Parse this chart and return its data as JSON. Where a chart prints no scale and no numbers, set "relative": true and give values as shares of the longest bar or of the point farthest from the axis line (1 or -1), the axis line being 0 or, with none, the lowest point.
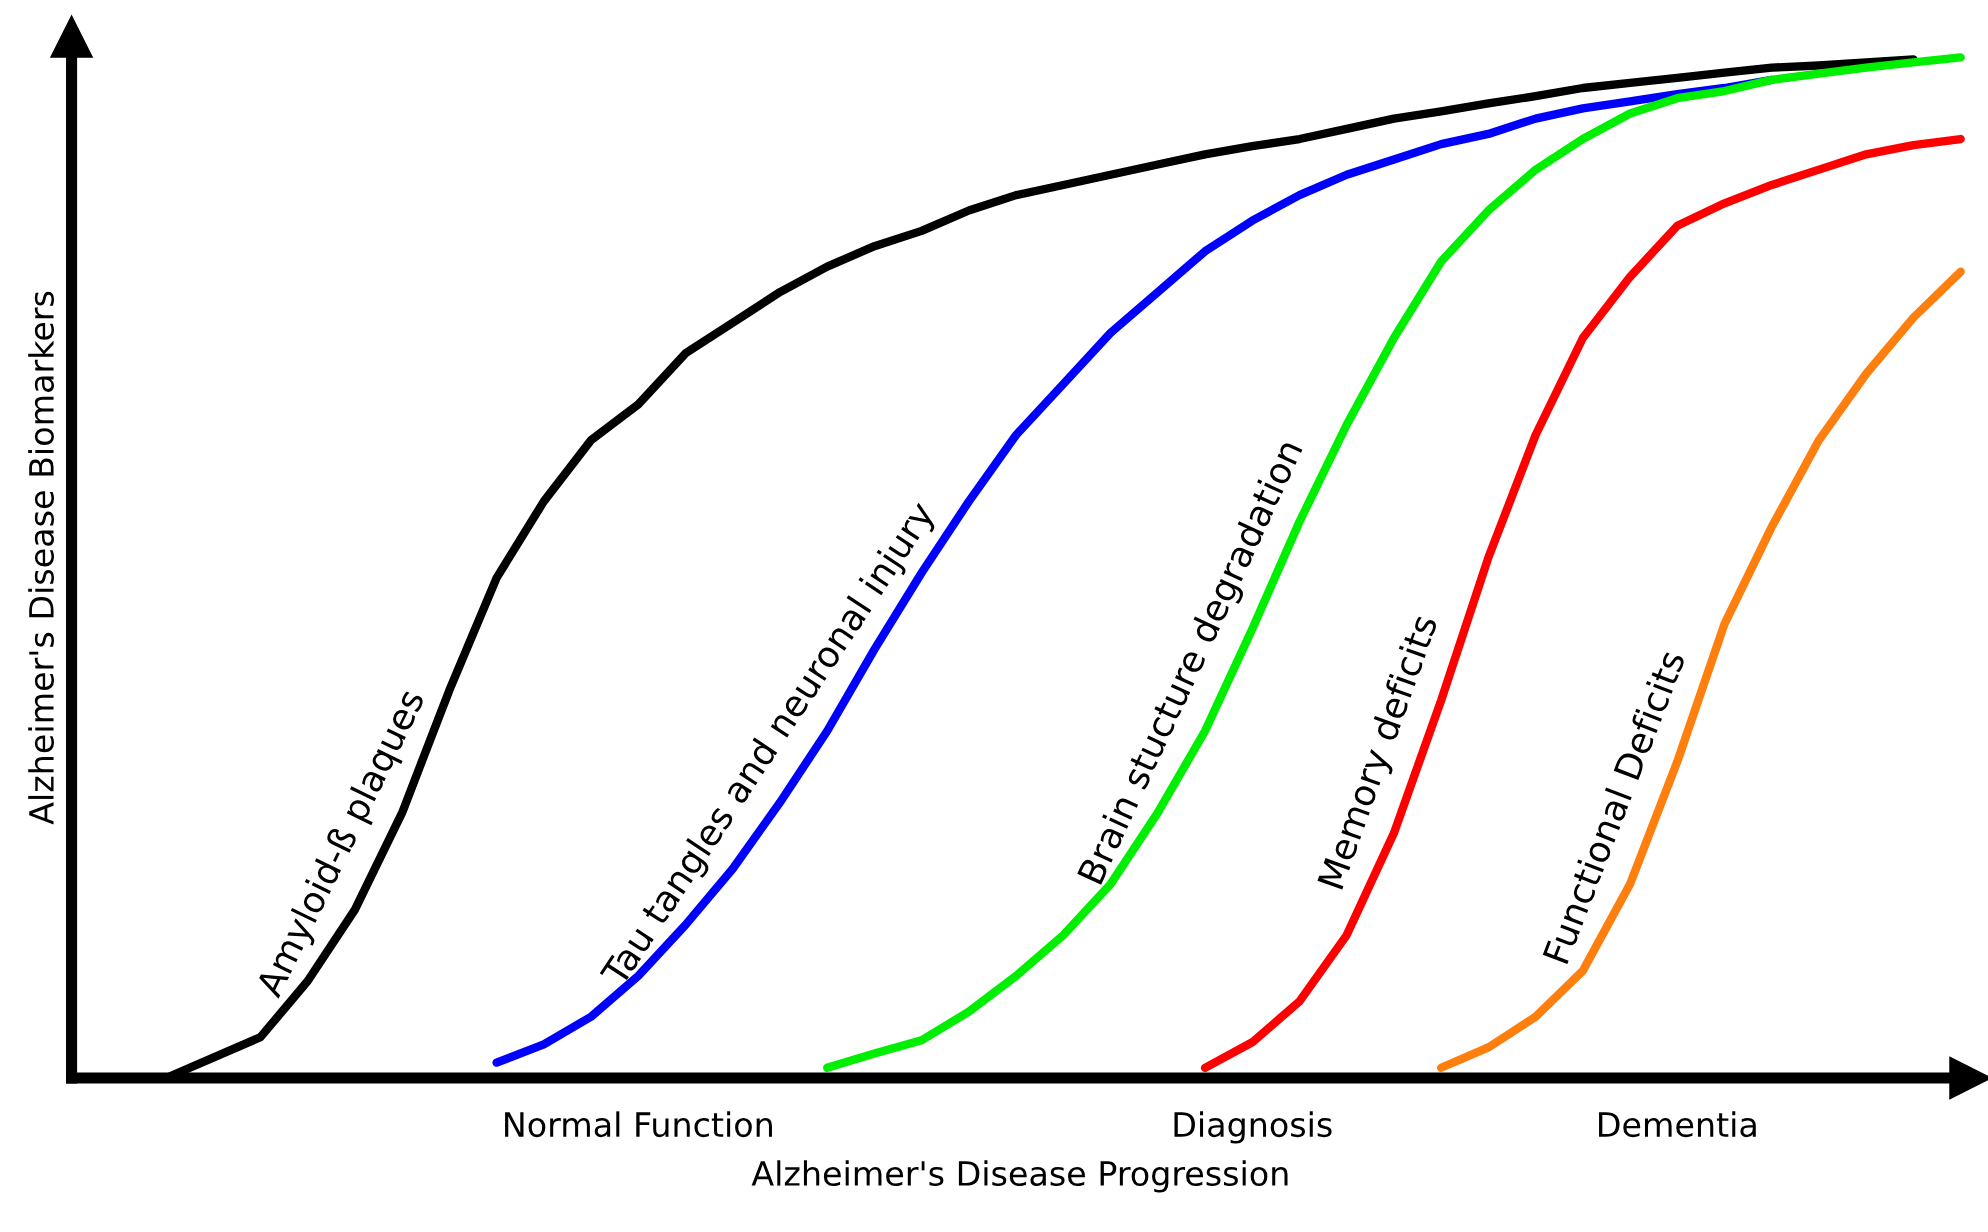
{
  "chart_data": {
    "type": "line",
    "relative": true,
    "xlabel": "Alzheimer's Disease Progression",
    "ylabel": "Alzheimer's Disease Biomarkers",
    "categories": [
      null,
      null,
      null,
      null,
      null,
      null,
      null,
      null,
      null,
      null,
      null,
      null,
      "Normal Function",
      null,
      null,
      null,
      null,
      null,
      null,
      null,
      null,
      null,
      null,
      null,
      null,
      "Diagnosis",
      null,
      null,
      null,
      null,
      null,
      null,
      null,
      null,
      "Dementia",
      null,
      null,
      null,
      null,
      null,
      null
    ],
    "tick_labels": "x",
    "grid": false,
    "legend": false,
    "marker": "none",
    "line_style": "solid",
    "series": [
      {
        "name": "Amyloid-ß plaques",
        "color": "#000000",
        "values": [
          null,
          null,
          0,
          0.02,
          0.04,
          0.095,
          0.165,
          0.26,
          0.38,
          0.49,
          0.565,
          0.625,
          0.66,
          0.71,
          0.74,
          0.77,
          0.795,
          0.815,
          0.83,
          0.85,
          0.865,
          0.875,
          0.885,
          0.895,
          0.905,
          0.913,
          0.92,
          0.93,
          0.94,
          0.947,
          0.955,
          0.962,
          0.97,
          0.975,
          0.98,
          0.985,
          0.99,
          0.992,
          0.995,
          0.998,
          null
        ]
      },
      {
        "name": "Tau tangles and neuronal injury",
        "color": "#0000ff",
        "values": [
          null,
          null,
          null,
          null,
          null,
          null,
          null,
          null,
          null,
          0.015,
          0.033,
          0.06,
          0.1,
          0.15,
          0.205,
          0.27,
          0.34,
          0.42,
          0.495,
          0.565,
          0.63,
          0.68,
          0.73,
          0.77,
          0.81,
          0.84,
          0.865,
          0.885,
          0.9,
          0.915,
          0.925,
          0.94,
          0.95,
          0.957,
          0.964,
          0.97,
          0.978,
          null,
          null,
          null,
          null
        ]
      },
      {
        "name": "Brain stucture degradation",
        "color": "#00ee00",
        "values": [
          null,
          null,
          null,
          null,
          null,
          null,
          null,
          null,
          null,
          null,
          null,
          null,
          null,
          null,
          null,
          null,
          0.01,
          0.024,
          0.037,
          0.065,
          0.1,
          0.14,
          0.19,
          0.26,
          0.34,
          0.44,
          0.545,
          0.64,
          0.725,
          0.8,
          0.85,
          0.89,
          0.92,
          0.945,
          0.96,
          0.967,
          0.978,
          0.984,
          0.99,
          0.995,
          1
        ]
      },
      {
        "name": "Memory deficits",
        "color": "#ff0000",
        "values": [
          null,
          null,
          null,
          null,
          null,
          null,
          null,
          null,
          null,
          null,
          null,
          null,
          null,
          null,
          null,
          null,
          null,
          null,
          null,
          null,
          null,
          null,
          null,
          null,
          0.01,
          0.035,
          0.075,
          0.14,
          0.24,
          0.37,
          0.51,
          0.63,
          0.725,
          0.785,
          0.835,
          0.857,
          0.875,
          0.89,
          0.905,
          0.914,
          0.92
        ]
      },
      {
        "name": "Functional Deficits",
        "color": "#ff7f0e",
        "values": [
          null,
          null,
          null,
          null,
          null,
          null,
          null,
          null,
          null,
          null,
          null,
          null,
          null,
          null,
          null,
          null,
          null,
          null,
          null,
          null,
          null,
          null,
          null,
          null,
          null,
          null,
          null,
          null,
          null,
          0.01,
          0.03,
          0.06,
          0.105,
          0.19,
          0.31,
          0.445,
          0.54,
          0.625,
          0.69,
          0.745,
          0.79
        ]
      }
    ]
  }
}
